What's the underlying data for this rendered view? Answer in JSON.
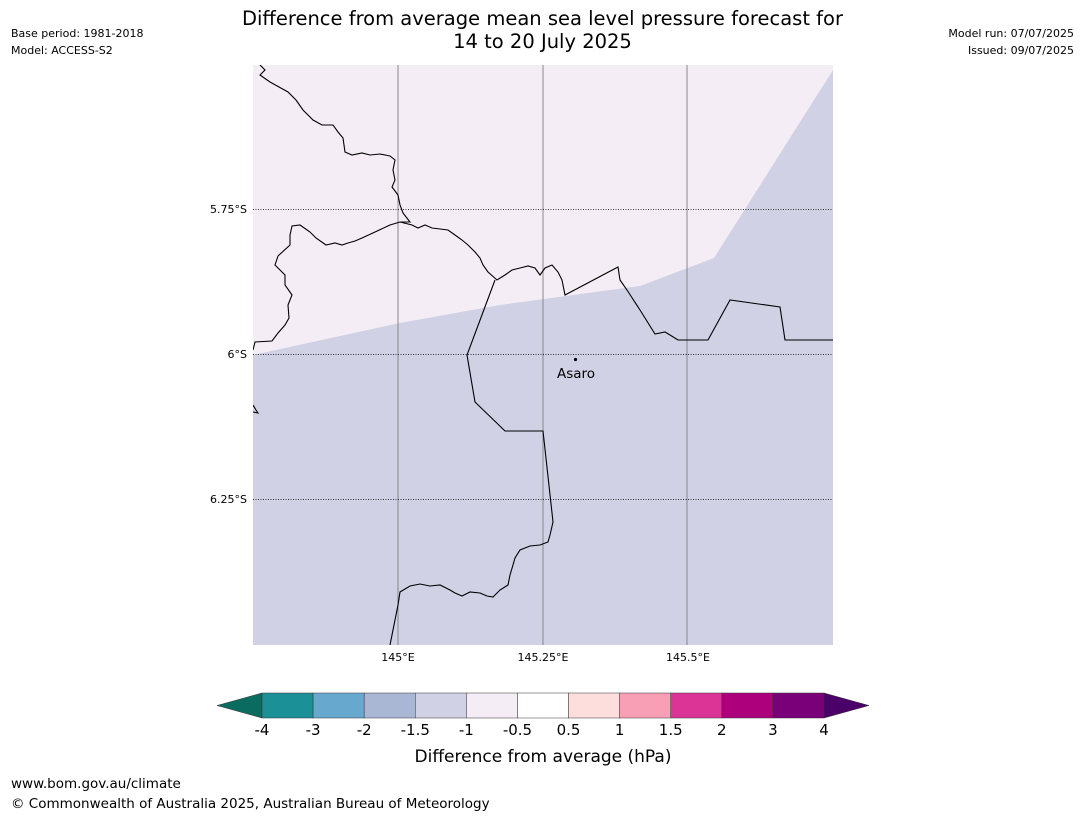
{
  "title_line1": "Difference from average mean sea level pressure forecast for",
  "title_line2": "14 to 20 July 2025",
  "base_period": "Base period: 1981-2018",
  "model": "Model: ACCESS-S2",
  "model_run": "Model run: 07/07/2025",
  "issued": "Issued: 09/07/2025",
  "map": {
    "latitudes": [
      {
        "label": "5.75°S"
      },
      {
        "label": "6°S"
      },
      {
        "label": "6.25°S"
      }
    ],
    "longitudes": [
      {
        "label": "145°E"
      },
      {
        "label": "145.25°E"
      },
      {
        "label": "145.5°E"
      }
    ],
    "place": {
      "name": "Asaro"
    },
    "fill_colors": {
      "light": "#f4edf5",
      "dark": "#d0d1e4"
    }
  },
  "colorbar": {
    "title": "Difference from average (hPa)",
    "ticks": [
      "-4",
      "-3",
      "-2",
      "-1.5",
      "-1",
      "-0.5",
      "0.5",
      "1",
      "1.5",
      "2",
      "3",
      "4"
    ],
    "under_color": "#0a6b60",
    "over_color": "#4a0068",
    "colors": [
      "#1b9097",
      "#67a8cf",
      "#a9b7d4",
      "#d0d1e4",
      "#f4edf5",
      "#ffffff",
      "#fddedd",
      "#f89fb5",
      "#dc3496",
      "#ad007c",
      "#7a0079"
    ]
  },
  "footer_url": "www.bom.gov.au/climate",
  "footer_copyright": "© Commonwealth of Australia 2025, Australian Bureau of Meteorology"
}
